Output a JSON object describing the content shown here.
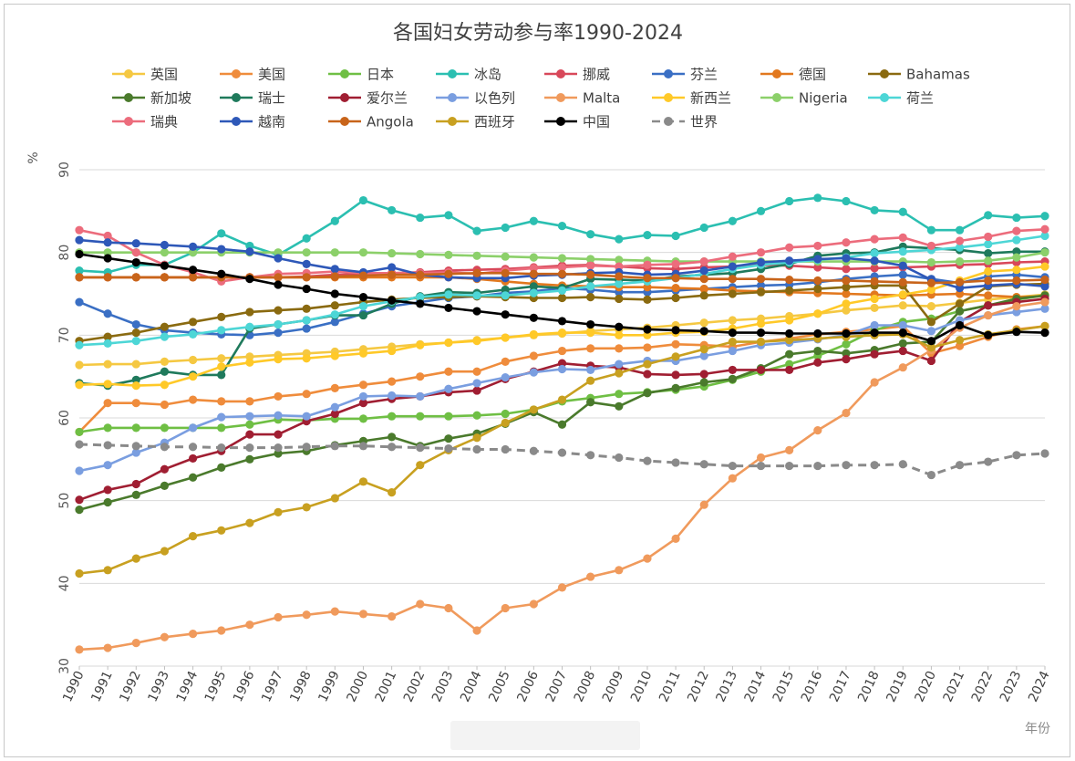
{
  "chart_data": {
    "type": "line",
    "title": "各国妇女劳动参与率1990-2024",
    "ylabel": "%",
    "xlabel": "年份",
    "ylim": [
      30,
      90
    ],
    "yticks": [
      30,
      40,
      50,
      60,
      70,
      80,
      90
    ],
    "grid": "horizontal",
    "legend": "top",
    "x": [
      "1990",
      "1991",
      "1992",
      "1993",
      "1994",
      "1995",
      "1996",
      "1997",
      "1998",
      "1999",
      "2000",
      "2001",
      "2002",
      "2003",
      "2004",
      "2005",
      "2006",
      "2007",
      "2008",
      "2009",
      "2010",
      "2011",
      "2012",
      "2013",
      "2014",
      "2015",
      "2016",
      "2017",
      "2018",
      "2019",
      "2020",
      "2021",
      "2022",
      "2023",
      "2024"
    ],
    "series": [
      {
        "name": "英国",
        "color": "#f5c842",
        "values": [
          66.4,
          66.5,
          66.5,
          66.8,
          67.0,
          67.2,
          67.4,
          67.6,
          67.8,
          68.0,
          68.3,
          68.6,
          68.9,
          69.1,
          69.4,
          69.7,
          70.0,
          70.2,
          70.5,
          70.7,
          70.9,
          71.2,
          71.5,
          71.8,
          72.0,
          72.3,
          72.6,
          73.0,
          73.3,
          73.6,
          73.5,
          73.9,
          74.3,
          74.6,
          74.9
        ]
      },
      {
        "name": "美国",
        "color": "#ef8c3c",
        "values": [
          58.3,
          61.8,
          61.8,
          61.6,
          62.2,
          62.0,
          62.0,
          62.6,
          62.9,
          63.6,
          64.0,
          64.4,
          65.0,
          65.6,
          65.6,
          66.8,
          67.5,
          68.1,
          68.4,
          68.4,
          68.5,
          68.9,
          68.8,
          68.6,
          69.2,
          69.6,
          70.1,
          70.4,
          70.7,
          71.1,
          67.8,
          68.7,
          69.8,
          70.7,
          71.1
        ]
      },
      {
        "name": "日本",
        "color": "#6fbf44",
        "values": [
          58.3,
          58.8,
          58.8,
          58.8,
          58.8,
          58.8,
          59.2,
          59.8,
          59.7,
          59.9,
          59.9,
          60.2,
          60.2,
          60.2,
          60.3,
          60.5,
          61.0,
          62.0,
          62.4,
          62.9,
          63.1,
          63.4,
          63.8,
          64.6,
          65.6,
          66.5,
          67.5,
          68.9,
          70.6,
          71.6,
          72.0,
          72.9,
          73.6,
          74.3,
          74.8
        ]
      },
      {
        "name": "冰岛",
        "color": "#2bbfb1",
        "values": [
          77.8,
          77.6,
          78.5,
          78.5,
          80.0,
          82.3,
          80.8,
          79.7,
          81.7,
          83.8,
          86.3,
          85.1,
          84.2,
          84.5,
          82.6,
          83.0,
          83.8,
          83.2,
          82.2,
          81.6,
          82.1,
          82.0,
          83.0,
          83.8,
          85.0,
          86.2,
          86.6,
          86.2,
          85.1,
          84.9,
          82.7,
          82.7,
          84.5,
          84.2,
          84.4
        ]
      },
      {
        "name": "挪威",
        "color": "#d8485a",
        "values": [
          77.0,
          77.0,
          77.0,
          77.0,
          77.0,
          77.0,
          77.0,
          77.0,
          77.1,
          77.3,
          77.4,
          77.5,
          77.6,
          77.8,
          77.9,
          78.0,
          78.2,
          78.4,
          78.5,
          78.3,
          78.1,
          78.0,
          78.2,
          78.3,
          78.5,
          78.4,
          78.2,
          78.0,
          78.1,
          78.2,
          78.3,
          78.5,
          78.6,
          78.8,
          78.9
        ]
      },
      {
        "name": "芬兰",
        "color": "#3a6fc4",
        "values": [
          74.0,
          72.6,
          71.3,
          70.6,
          70.3,
          70.1,
          70.0,
          70.3,
          70.8,
          71.6,
          72.6,
          73.5,
          74.0,
          74.5,
          74.7,
          75.1,
          75.3,
          75.7,
          75.5,
          75.2,
          75.2,
          75.4,
          75.6,
          75.8,
          76.0,
          76.1,
          76.4,
          76.8,
          77.1,
          77.3,
          76.8,
          76.3,
          77.1,
          77.3,
          77.0
        ]
      },
      {
        "name": "德国",
        "color": "#e2781e",
        "values": [
          77.0,
          77.0,
          77.0,
          77.0,
          77.0,
          77.0,
          77.0,
          77.0,
          77.0,
          77.0,
          77.0,
          77.0,
          77.0,
          77.0,
          76.8,
          76.5,
          76.2,
          76.0,
          75.9,
          75.8,
          75.8,
          75.7,
          75.6,
          75.4,
          75.3,
          75.2,
          75.1,
          75.0,
          74.9,
          74.8,
          74.9,
          75.0,
          74.8,
          74.6,
          74.7
        ]
      },
      {
        "name": "Bahamas",
        "color": "#8a6a10",
        "values": [
          69.3,
          69.8,
          70.3,
          71.0,
          71.6,
          72.2,
          72.8,
          73.0,
          73.2,
          73.6,
          74.0,
          74.3,
          74.5,
          74.6,
          74.7,
          74.6,
          74.5,
          74.5,
          74.6,
          74.4,
          74.3,
          74.5,
          74.8,
          75.0,
          75.2,
          75.4,
          75.6,
          75.8,
          76.0,
          76.0,
          71.6,
          73.8,
          75.9,
          76.1,
          76.2
        ]
      },
      {
        "name": "新加坡",
        "color": "#4a7a2c",
        "values": [
          48.9,
          49.8,
          50.7,
          51.8,
          52.8,
          54.0,
          55.0,
          55.7,
          56.0,
          56.7,
          57.2,
          57.7,
          56.6,
          57.5,
          58.1,
          59.3,
          60.7,
          59.2,
          61.9,
          61.4,
          63.0,
          63.6,
          64.3,
          64.7,
          66.0,
          67.7,
          68.1,
          67.8,
          68.2,
          69.0,
          69.2,
          72.9,
          73.6,
          74.4,
          74.8
        ]
      },
      {
        "name": "瑞士",
        "color": "#1f7a5c",
        "values": [
          64.2,
          63.9,
          64.6,
          65.6,
          65.2,
          65.2,
          70.8,
          71.3,
          71.8,
          72.4,
          72.4,
          73.8,
          74.7,
          75.2,
          75.1,
          75.5,
          75.9,
          75.7,
          76.8,
          76.7,
          76.6,
          77.1,
          77.3,
          77.5,
          78.0,
          78.6,
          79.6,
          79.9,
          80.0,
          80.7,
          80.5,
          80.3,
          79.9,
          80.1,
          80.1
        ]
      },
      {
        "name": "爱尔兰",
        "color": "#a01e32",
        "values": [
          50.1,
          51.3,
          52.0,
          53.8,
          55.1,
          56.0,
          58.0,
          58.0,
          59.6,
          60.5,
          61.8,
          62.3,
          62.6,
          63.1,
          63.3,
          64.7,
          65.6,
          66.6,
          66.3,
          66.1,
          65.3,
          65.2,
          65.3,
          65.8,
          65.8,
          65.8,
          66.7,
          67.1,
          67.7,
          68.1,
          66.9,
          71.6,
          73.6,
          74.0,
          74.4
        ]
      },
      {
        "name": "以色列",
        "color": "#7a9ee0",
        "values": [
          53.6,
          54.3,
          55.8,
          57.0,
          58.8,
          60.1,
          60.2,
          60.3,
          60.2,
          61.3,
          62.6,
          62.7,
          62.6,
          63.5,
          64.2,
          64.9,
          65.5,
          65.9,
          65.8,
          66.5,
          66.9,
          66.9,
          67.5,
          68.1,
          68.8,
          69.1,
          69.5,
          70.0,
          71.2,
          71.2,
          70.5,
          71.8,
          72.4,
          72.8,
          73.2
        ]
      },
      {
        "name": "Malta",
        "color": "#f09a5c",
        "values": [
          32.0,
          32.2,
          32.8,
          33.5,
          33.9,
          34.3,
          35.0,
          35.9,
          36.2,
          36.6,
          36.3,
          36.0,
          37.5,
          37.0,
          34.3,
          37.0,
          37.5,
          39.5,
          40.8,
          41.6,
          43.0,
          45.4,
          49.5,
          52.7,
          55.2,
          56.1,
          58.5,
          60.6,
          64.3,
          66.1,
          68.2,
          70.9,
          72.4,
          73.5,
          74.0
        ]
      },
      {
        "name": "新西兰",
        "color": "#ffc928",
        "values": [
          64.0,
          64.1,
          63.9,
          64.0,
          65.0,
          66.2,
          66.7,
          67.1,
          67.2,
          67.5,
          67.8,
          68.1,
          68.8,
          69.1,
          69.3,
          69.7,
          70.1,
          70.3,
          70.3,
          70.0,
          70.0,
          70.3,
          70.4,
          70.8,
          71.4,
          71.8,
          72.6,
          73.8,
          74.4,
          74.9,
          75.5,
          76.6,
          77.7,
          77.9,
          78.3
        ]
      },
      {
        "name": "Nigeria",
        "color": "#8cd06a",
        "values": [
          80.0,
          80.0,
          80.0,
          80.0,
          80.0,
          80.0,
          80.0,
          80.0,
          80.0,
          80.0,
          80.0,
          79.9,
          79.8,
          79.7,
          79.6,
          79.5,
          79.4,
          79.3,
          79.2,
          79.1,
          79.0,
          78.9,
          78.9,
          78.9,
          78.9,
          78.9,
          78.9,
          78.9,
          78.9,
          78.9,
          78.8,
          78.9,
          79.0,
          79.4,
          80.0
        ]
      },
      {
        "name": "荷兰",
        "color": "#4dd6d6",
        "values": [
          68.8,
          69.0,
          69.3,
          69.8,
          70.1,
          70.6,
          71.0,
          71.3,
          71.8,
          72.5,
          73.5,
          74.1,
          74.6,
          74.9,
          74.8,
          74.8,
          75.1,
          75.4,
          75.9,
          76.2,
          76.5,
          76.9,
          77.4,
          78.0,
          78.5,
          78.8,
          79.1,
          79.4,
          79.9,
          80.1,
          80.3,
          80.6,
          81.0,
          81.5,
          82.0
        ]
      },
      {
        "name": "瑞典",
        "color": "#ec6c7c",
        "values": [
          82.7,
          82.0,
          80.0,
          78.5,
          77.6,
          76.5,
          77.0,
          77.4,
          77.5,
          77.7,
          77.5,
          77.5,
          77.5,
          77.6,
          77.4,
          77.8,
          78.1,
          78.2,
          78.4,
          78.3,
          78.5,
          78.6,
          78.9,
          79.5,
          80.0,
          80.6,
          80.8,
          81.2,
          81.6,
          81.8,
          80.8,
          81.4,
          81.9,
          82.6,
          82.8
        ]
      },
      {
        "name": "越南",
        "color": "#2e58b8",
        "values": [
          81.5,
          81.2,
          81.1,
          80.9,
          80.7,
          80.4,
          80.1,
          79.3,
          78.6,
          78.0,
          77.6,
          78.2,
          77.3,
          77.0,
          76.9,
          76.9,
          77.2,
          77.3,
          77.5,
          77.6,
          77.3,
          77.4,
          77.8,
          78.3,
          78.8,
          79.0,
          79.2,
          79.3,
          79.0,
          78.4,
          76.7,
          75.7,
          76.0,
          76.2,
          75.9
        ]
      },
      {
        "name": "Angola",
        "color": "#c8641a",
        "values": [
          77.0,
          77.0,
          77.0,
          77.0,
          77.0,
          77.0,
          77.0,
          77.0,
          77.0,
          77.1,
          77.2,
          77.3,
          77.3,
          77.4,
          77.5,
          77.5,
          77.4,
          77.4,
          77.3,
          77.1,
          76.9,
          76.9,
          76.8,
          76.8,
          76.8,
          76.7,
          76.6,
          76.6,
          76.5,
          76.4,
          76.3,
          76.4,
          76.6,
          76.6,
          76.7
        ]
      },
      {
        "name": "西班牙",
        "color": "#c8a020",
        "values": [
          41.2,
          41.6,
          43.0,
          43.9,
          45.7,
          46.4,
          47.3,
          48.6,
          49.2,
          50.3,
          52.3,
          51.0,
          54.3,
          56.1,
          57.6,
          59.4,
          61.0,
          62.2,
          64.5,
          65.4,
          66.5,
          67.4,
          68.3,
          69.2,
          69.2,
          69.4,
          69.6,
          69.8,
          70.0,
          70.1,
          68.5,
          69.4,
          70.1,
          70.6,
          71.1
        ]
      },
      {
        "name": "中国",
        "color": "#000000",
        "values": [
          79.8,
          79.3,
          78.8,
          78.4,
          77.9,
          77.4,
          76.8,
          76.1,
          75.6,
          75.0,
          74.6,
          74.2,
          73.8,
          73.3,
          72.9,
          72.5,
          72.1,
          71.7,
          71.3,
          71.0,
          70.7,
          70.6,
          70.5,
          70.3,
          70.3,
          70.2,
          70.2,
          70.2,
          70.3,
          70.3,
          69.3,
          71.2,
          70.0,
          70.4,
          70.3
        ]
      },
      {
        "name": "世界",
        "color": "#8a8a8a",
        "dashed": true,
        "values": [
          56.8,
          56.7,
          56.6,
          56.5,
          56.5,
          56.4,
          56.4,
          56.4,
          56.5,
          56.6,
          56.6,
          56.5,
          56.4,
          56.3,
          56.2,
          56.2,
          56.0,
          55.8,
          55.5,
          55.2,
          54.8,
          54.6,
          54.4,
          54.2,
          54.2,
          54.2,
          54.2,
          54.3,
          54.3,
          54.4,
          53.1,
          54.3,
          54.7,
          55.5,
          55.7
        ]
      }
    ]
  }
}
